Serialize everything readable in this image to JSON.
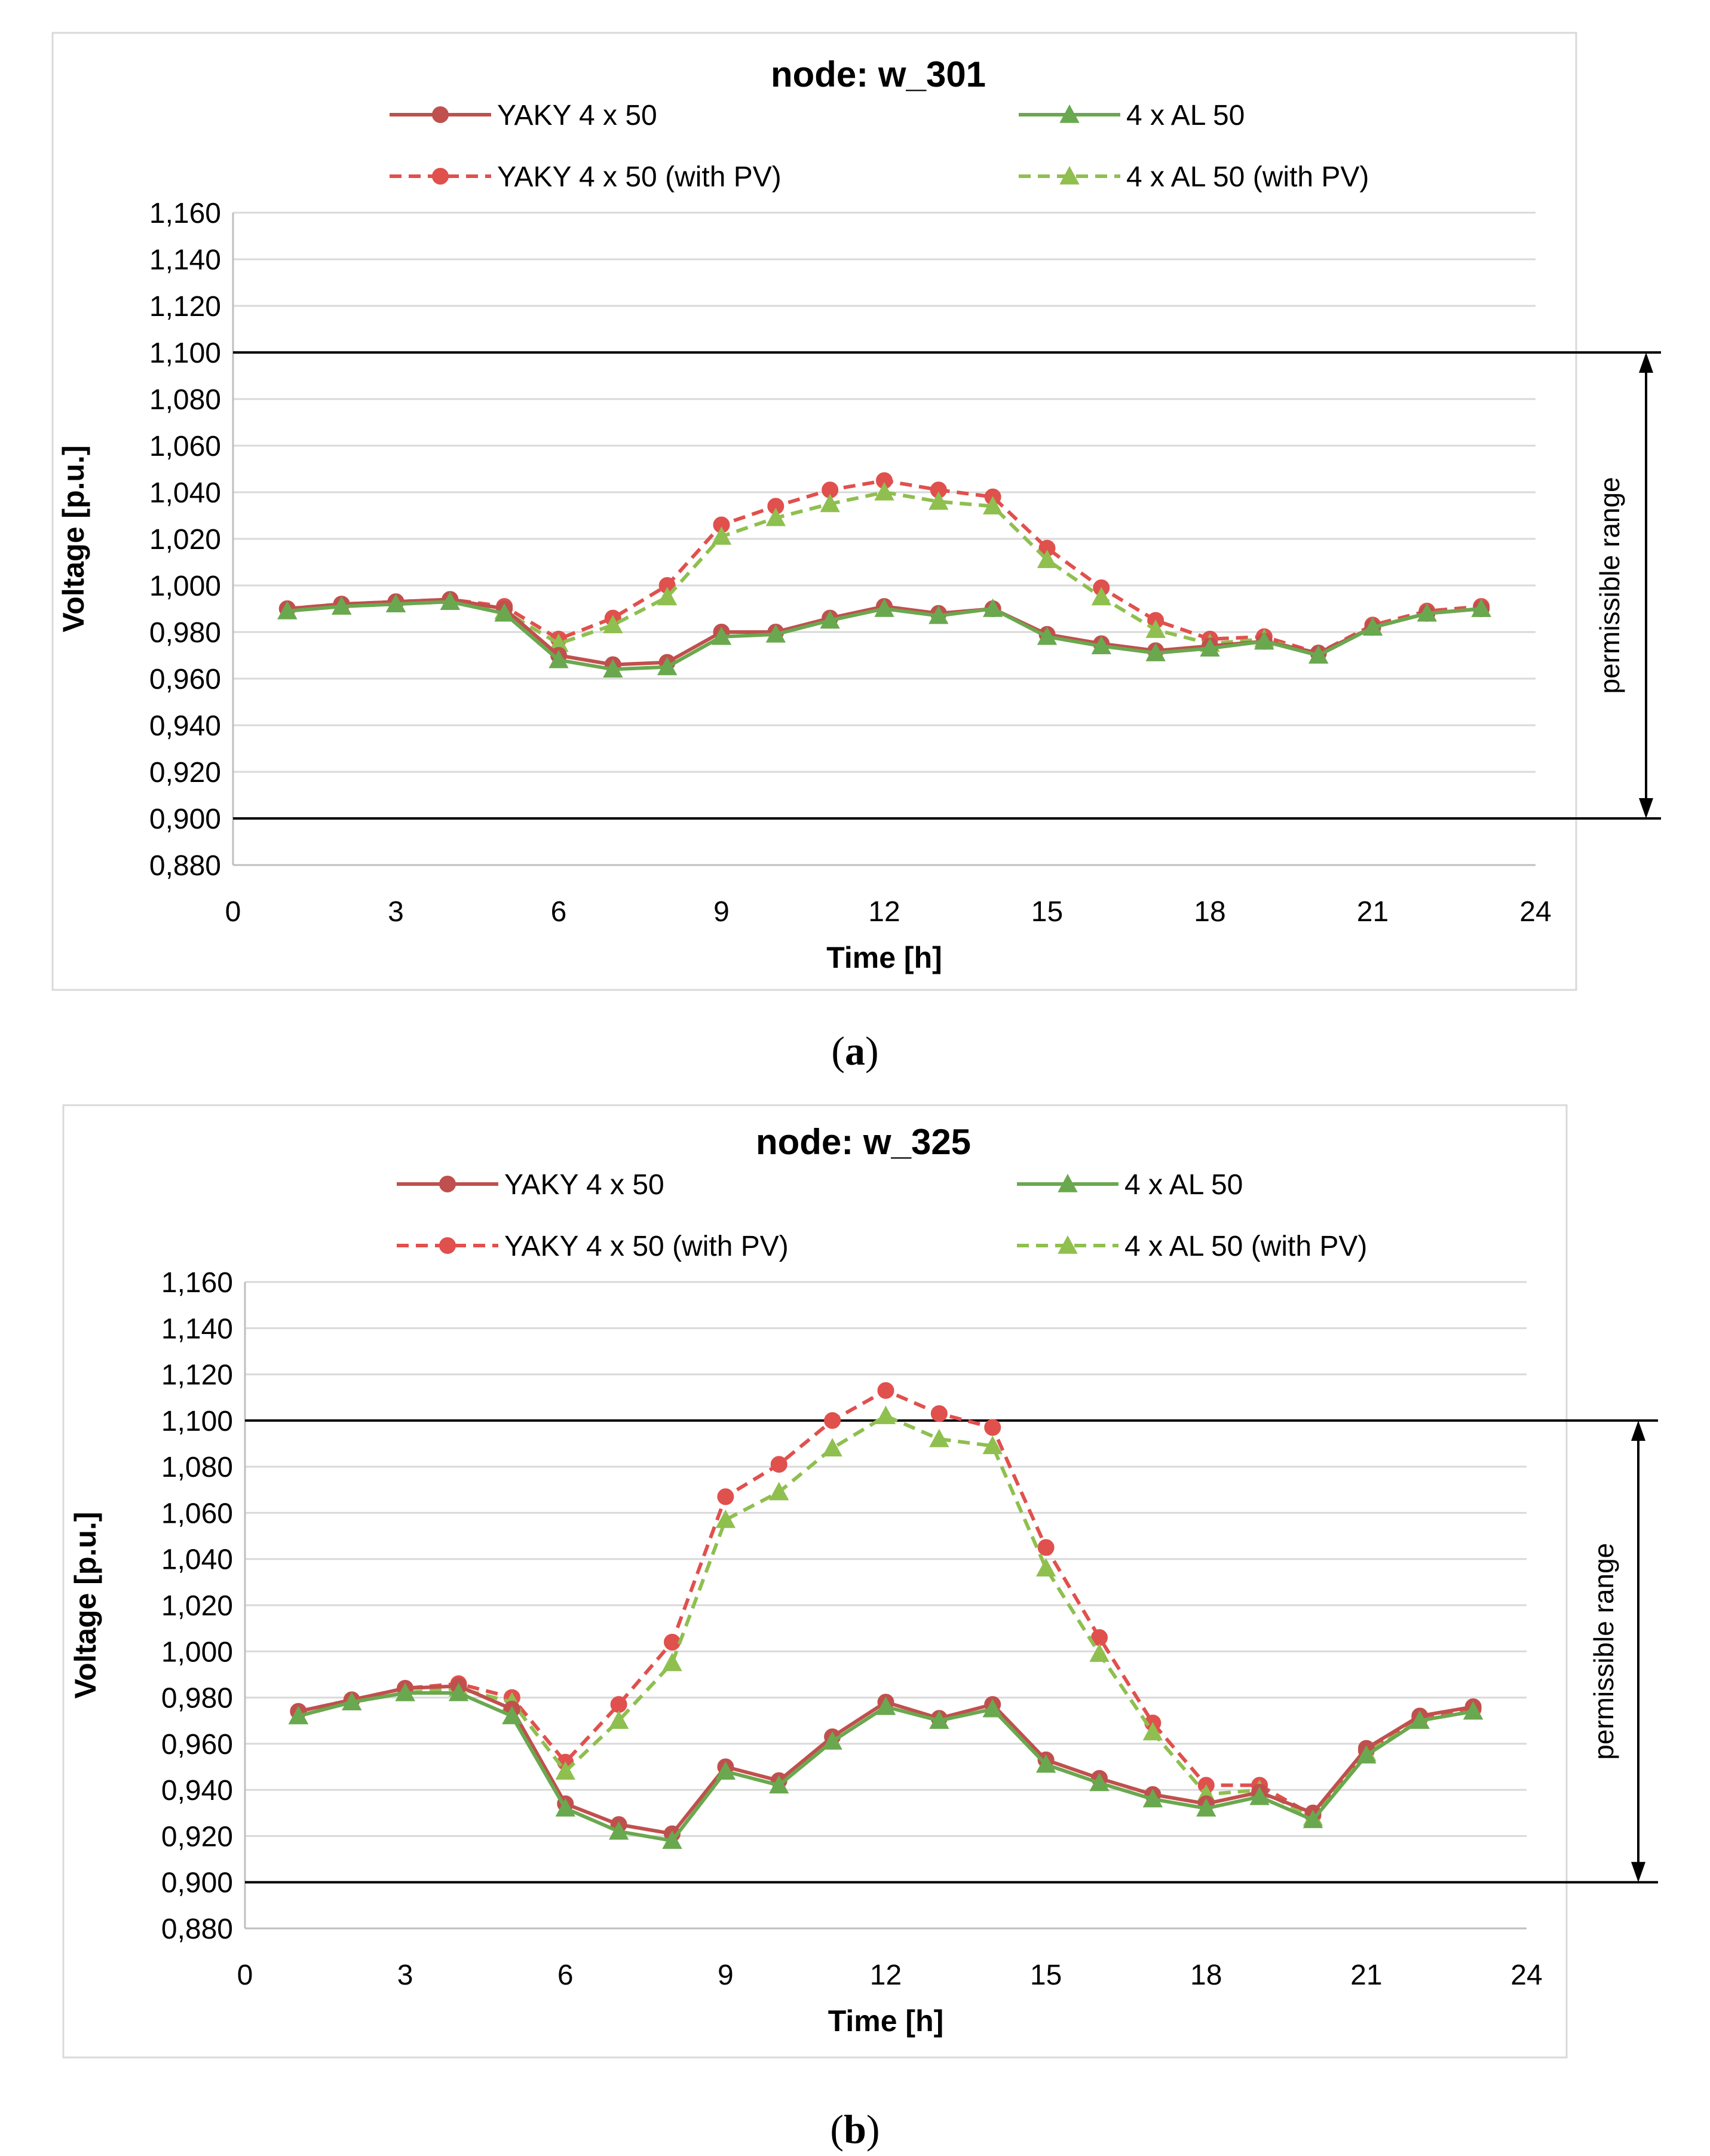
{
  "chart_data": [
    {
      "type": "line",
      "subfigure_label": "a",
      "title": "node: w_301",
      "xlabel": "Time [h]",
      "ylabel": "Voltage [p.u.]",
      "xlim": [
        0,
        24
      ],
      "ylim": [
        0.88,
        1.16
      ],
      "x_ticks": [
        "0",
        "3",
        "6",
        "9",
        "12",
        "15",
        "18",
        "21",
        "24"
      ],
      "y_ticks": [
        "0,880",
        "0,900",
        "0,920",
        "0,940",
        "0,960",
        "0,980",
        "1,000",
        "1,020",
        "1,040",
        "1,060",
        "1,080",
        "1,100",
        "1,120",
        "1,140",
        "1,160"
      ],
      "limit_lines": [
        0.9,
        1.1
      ],
      "annotation": "permissible range",
      "x": [
        1,
        2,
        3,
        4,
        5,
        6,
        7,
        8,
        9,
        10,
        11,
        12,
        13,
        14,
        15,
        16,
        17,
        18,
        19,
        20,
        21,
        22,
        23
      ],
      "series": [
        {
          "name": "YAKY 4 x 50",
          "color": "#c0504d",
          "dashed": false,
          "marker": "circle",
          "values": [
            0.99,
            0.992,
            0.993,
            0.994,
            0.99,
            0.97,
            0.966,
            0.967,
            0.98,
            0.98,
            0.986,
            0.991,
            0.988,
            0.99,
            0.979,
            0.975,
            0.972,
            0.974,
            0.976,
            0.971,
            0.982,
            0.988,
            0.99
          ]
        },
        {
          "name": "4 x AL 50",
          "color": "#6aa84f",
          "dashed": false,
          "marker": "triangle",
          "values": [
            0.989,
            0.991,
            0.992,
            0.993,
            0.988,
            0.968,
            0.964,
            0.965,
            0.978,
            0.979,
            0.985,
            0.99,
            0.987,
            0.99,
            0.978,
            0.974,
            0.971,
            0.973,
            0.976,
            0.97,
            0.982,
            0.988,
            0.99
          ]
        },
        {
          "name": "YAKY 4 x 50 (with PV)",
          "color": "#e0504d",
          "dashed": true,
          "marker": "circle",
          "values": [
            0.99,
            0.992,
            0.993,
            0.994,
            0.991,
            0.977,
            0.986,
            1.0,
            1.026,
            1.034,
            1.041,
            1.045,
            1.041,
            1.038,
            1.016,
            0.999,
            0.985,
            0.977,
            0.978,
            0.971,
            0.983,
            0.989,
            0.991
          ]
        },
        {
          "name": "4 x AL 50 (with PV)",
          "color": "#8fbf4f",
          "dashed": true,
          "marker": "triangle",
          "values": [
            0.989,
            0.991,
            0.992,
            0.993,
            0.989,
            0.975,
            0.983,
            0.995,
            1.021,
            1.029,
            1.035,
            1.04,
            1.036,
            1.034,
            1.011,
            0.995,
            0.981,
            0.975,
            0.977,
            0.97,
            0.982,
            0.988,
            0.99
          ]
        }
      ]
    },
    {
      "type": "line",
      "subfigure_label": "b",
      "title": "node: w_325",
      "xlabel": "Time [h]",
      "ylabel": "Voltage [p.u.]",
      "xlim": [
        0,
        24
      ],
      "ylim": [
        0.88,
        1.16
      ],
      "x_ticks": [
        "0",
        "3",
        "6",
        "9",
        "12",
        "15",
        "18",
        "21",
        "24"
      ],
      "y_ticks": [
        "0,880",
        "0,900",
        "0,920",
        "0,940",
        "0,960",
        "0,980",
        "1,000",
        "1,020",
        "1,040",
        "1,060",
        "1,080",
        "1,100",
        "1,120",
        "1,140",
        "1,160"
      ],
      "limit_lines": [
        0.9,
        1.1
      ],
      "annotation": "permissible range",
      "x": [
        1,
        2,
        3,
        4,
        5,
        6,
        7,
        8,
        9,
        10,
        11,
        12,
        13,
        14,
        15,
        16,
        17,
        18,
        19,
        20,
        21,
        22,
        23
      ],
      "series": [
        {
          "name": "YAKY 4 x 50",
          "color": "#c0504d",
          "dashed": false,
          "marker": "circle",
          "values": [
            0.974,
            0.979,
            0.984,
            0.985,
            0.975,
            0.934,
            0.925,
            0.921,
            0.95,
            0.944,
            0.963,
            0.978,
            0.971,
            0.977,
            0.953,
            0.945,
            0.938,
            0.934,
            0.939,
            0.93,
            0.958,
            0.972,
            0.976
          ]
        },
        {
          "name": "4 x AL 50",
          "color": "#6aa84f",
          "dashed": false,
          "marker": "triangle",
          "values": [
            0.972,
            0.978,
            0.982,
            0.982,
            0.972,
            0.932,
            0.922,
            0.918,
            0.948,
            0.942,
            0.961,
            0.976,
            0.97,
            0.975,
            0.951,
            0.943,
            0.936,
            0.932,
            0.937,
            0.927,
            0.955,
            0.97,
            0.974
          ]
        },
        {
          "name": "YAKY 4 x 50 (with PV)",
          "color": "#e0504d",
          "dashed": true,
          "marker": "circle",
          "values": [
            0.974,
            0.979,
            0.984,
            0.986,
            0.98,
            0.952,
            0.977,
            1.004,
            1.067,
            1.081,
            1.1,
            1.113,
            1.103,
            1.097,
            1.045,
            1.006,
            0.969,
            0.942,
            0.942,
            0.929,
            0.957,
            0.971,
            0.975
          ]
        },
        {
          "name": "4 x AL 50 (with PV)",
          "color": "#8fbf4f",
          "dashed": true,
          "marker": "triangle",
          "values": [
            0.972,
            0.978,
            0.982,
            0.984,
            0.978,
            0.948,
            0.97,
            0.995,
            1.057,
            1.069,
            1.088,
            1.102,
            1.092,
            1.089,
            1.036,
            0.999,
            0.965,
            0.938,
            0.94,
            0.928,
            0.956,
            0.97,
            0.974
          ]
        }
      ]
    }
  ]
}
